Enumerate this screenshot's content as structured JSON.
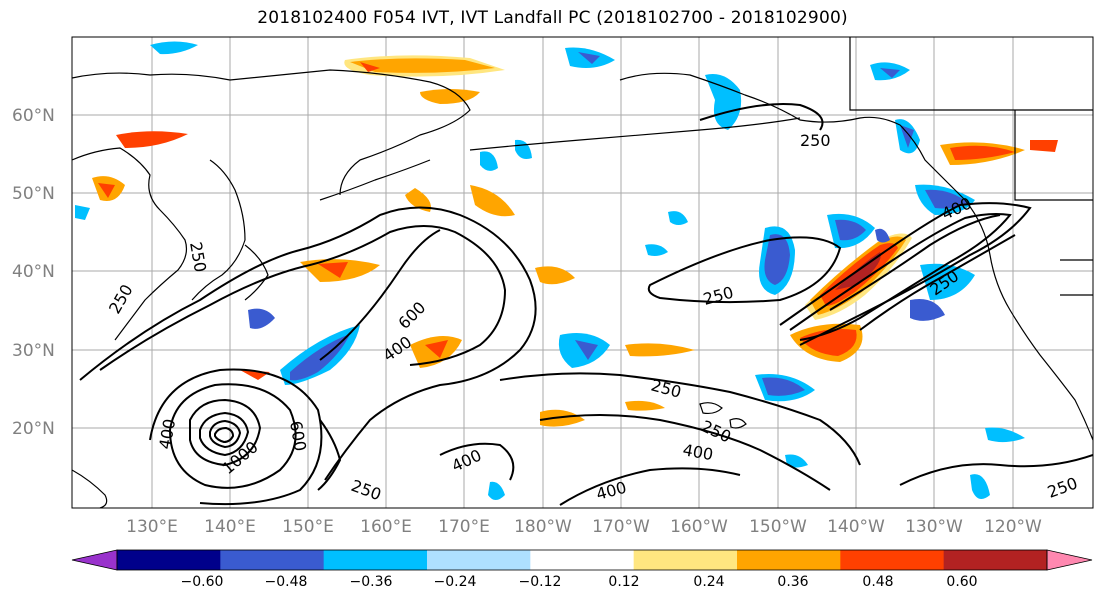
{
  "title": "2018102400 F054 IVT, IVT Landfall PC (2018102700 - 2018102900)",
  "lat_labels": [
    "60°N",
    "50°N",
    "40°N",
    "30°N",
    "20°N"
  ],
  "lon_labels": [
    "130°E",
    "140°E",
    "150°E",
    "160°E",
    "170°E",
    "180°W",
    "170°W",
    "160°W",
    "150°W",
    "140°W",
    "130°W",
    "120°W"
  ],
  "colorbar": {
    "ticks": [
      "−0.60",
      "−0.48",
      "−0.36",
      "−0.24",
      "−0.12",
      "0.12",
      "0.24",
      "0.36",
      "0.48",
      "0.60"
    ],
    "colors": [
      "#9932cc",
      "#00008b",
      "#3a5bd0",
      "#00bfff",
      "#aee0ff",
      "#ffffff",
      "#ffe680",
      "#ffa500",
      "#ff4000",
      "#b22222",
      "#ff88b0"
    ]
  },
  "contour_labels": [
    "250",
    "250",
    "250",
    "600",
    "400",
    "400",
    "400",
    "250",
    "400",
    "400",
    "250",
    "600",
    "400",
    "250",
    "250",
    "250",
    "250",
    "1000"
  ]
}
